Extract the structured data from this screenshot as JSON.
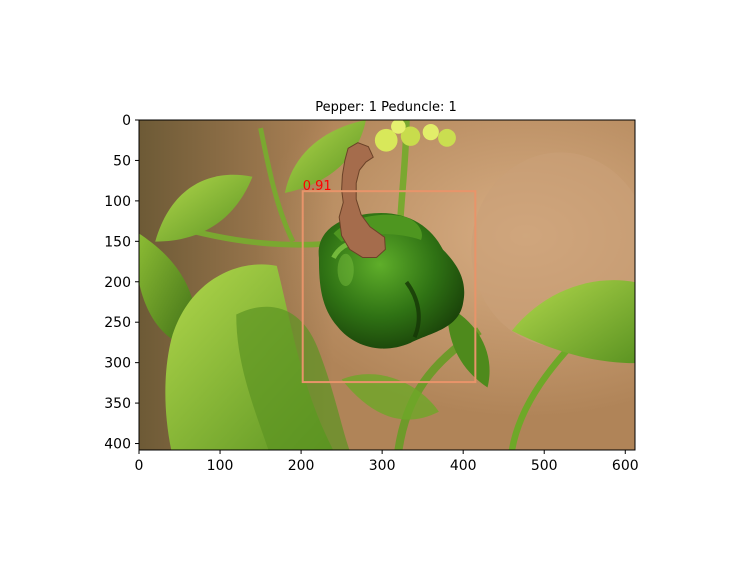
{
  "title": "Pepper: 1 Peduncle: 1",
  "image": {
    "width": 612,
    "height": 408,
    "subject": "green bell pepper with peduncle on plant",
    "colors": {
      "background_warm": "#c49a72",
      "background_dark": "#5a4a2c",
      "leaf_light": "#9cc63a",
      "leaf_mid": "#6ea828",
      "leaf_dark": "#3e6e16",
      "pepper_light": "#4f9a1f",
      "pepper_dark": "#1f4c0c",
      "flower": "#d8e85a"
    }
  },
  "axes": {
    "x_ticks": [
      "0",
      "100",
      "200",
      "300",
      "400",
      "500",
      "600"
    ],
    "y_ticks": [
      "0",
      "50",
      "100",
      "150",
      "200",
      "250",
      "300",
      "350",
      "400"
    ],
    "xlim": [
      0,
      612
    ],
    "ylim": [
      408,
      0
    ]
  },
  "detections": [
    {
      "label": "Pepper",
      "score": "0.91",
      "box": {
        "x1": 202,
        "y1": 88,
        "x2": 415,
        "y2": 324
      },
      "box_color": "#e8946a",
      "score_color": "#ff0000"
    }
  ],
  "masks": [
    {
      "label": "Peduncle",
      "color": "#a56c4c",
      "outline_color": "#6b4228",
      "points": [
        [
          258,
          35
        ],
        [
          270,
          28
        ],
        [
          283,
          33
        ],
        [
          289,
          46
        ],
        [
          280,
          52
        ],
        [
          272,
          62
        ],
        [
          268,
          78
        ],
        [
          268,
          98
        ],
        [
          274,
          117
        ],
        [
          285,
          132
        ],
        [
          303,
          145
        ],
        [
          304,
          160
        ],
        [
          293,
          170
        ],
        [
          276,
          170
        ],
        [
          260,
          160
        ],
        [
          250,
          143
        ],
        [
          247,
          120
        ],
        [
          252,
          102
        ],
        [
          250,
          86
        ],
        [
          251,
          68
        ],
        [
          254,
          50
        ]
      ]
    }
  ]
}
